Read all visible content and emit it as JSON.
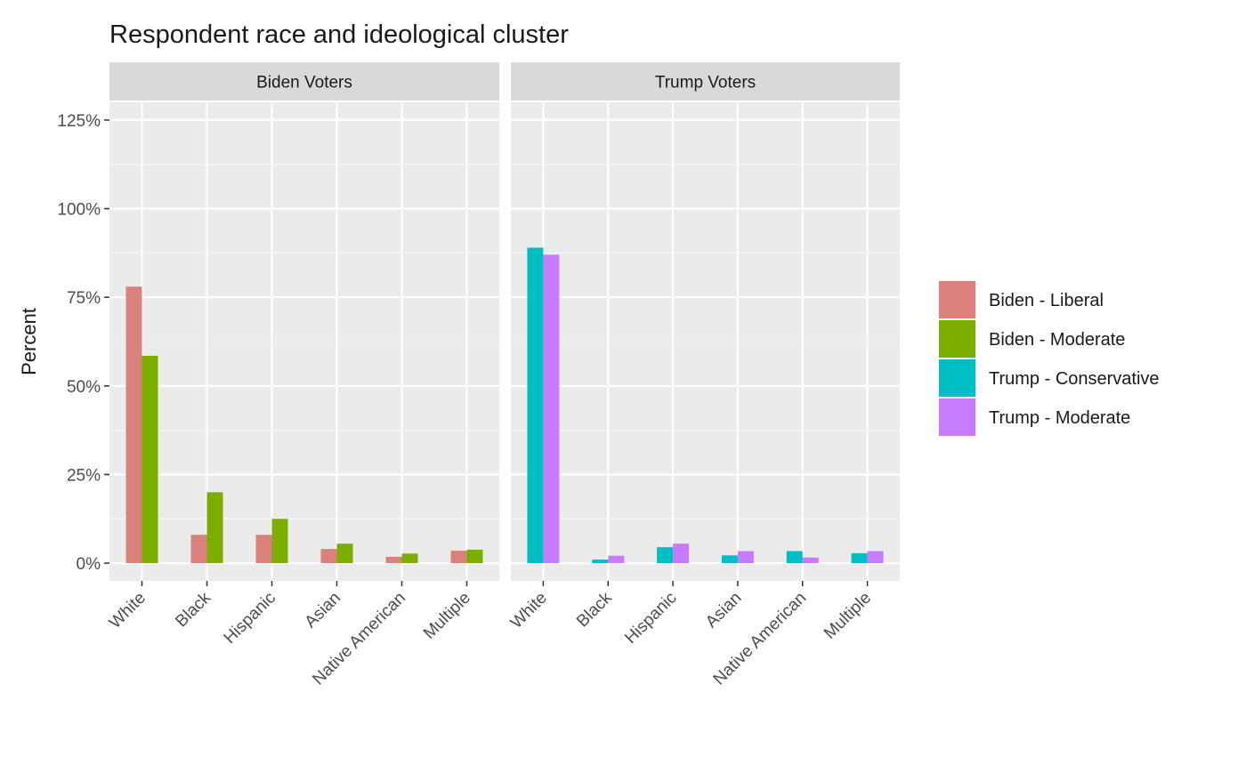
{
  "chart_data": {
    "type": "bar",
    "title": "Respondent race and ideological cluster",
    "ylabel": "Percent",
    "xlabel": "",
    "ylim": [
      -0.05,
      1.3
    ],
    "y_ticks": [
      0,
      0.25,
      0.5,
      0.75,
      1.0,
      1.25
    ],
    "y_tick_labels": [
      "0%",
      "25%",
      "50%",
      "75%",
      "100%",
      "125%"
    ],
    "grid": true,
    "legend_position": "right",
    "legend": [
      {
        "name": "Biden - Liberal",
        "color": "#D9817A"
      },
      {
        "name": "Biden - Moderate",
        "color": "#7CAE00"
      },
      {
        "name": "Trump - Conservative",
        "color": "#00BFC4"
      },
      {
        "name": "Trump - Moderate",
        "color": "#C77CFF"
      }
    ],
    "categories": [
      "White",
      "Black",
      "Hispanic",
      "Asian",
      "Native American",
      "Multiple"
    ],
    "facets": [
      {
        "name": "Biden Voters",
        "series": [
          {
            "name": "Biden - Liberal",
            "color": "#D9817A",
            "values": [
              0.78,
              0.08,
              0.08,
              0.04,
              0.018,
              0.035
            ]
          },
          {
            "name": "Biden - Moderate",
            "color": "#7CAE00",
            "values": [
              0.585,
              0.2,
              0.125,
              0.055,
              0.027,
              0.038
            ]
          }
        ]
      },
      {
        "name": "Trump Voters",
        "series": [
          {
            "name": "Trump - Conservative",
            "color": "#00BFC4",
            "values": [
              0.89,
              0.01,
              0.045,
              0.022,
              0.034,
              0.028
            ]
          },
          {
            "name": "Trump - Moderate",
            "color": "#C77CFF",
            "values": [
              0.87,
              0.021,
              0.055,
              0.034,
              0.016,
              0.034
            ]
          }
        ]
      }
    ]
  }
}
